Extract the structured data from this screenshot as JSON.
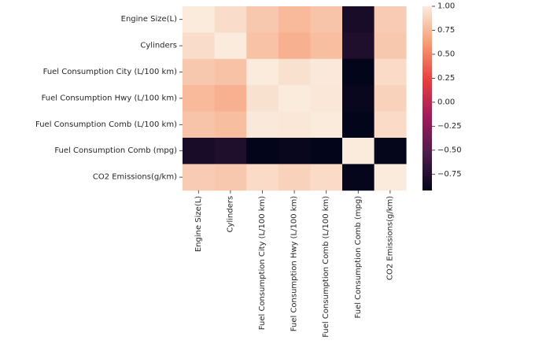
{
  "chart_data": {
    "type": "heatmap",
    "title": "",
    "xlabel": "",
    "ylabel": "",
    "row_labels": [
      "Engine Size(L)",
      "Cylinders",
      "Fuel Consumption City (L/100 km)",
      "Fuel Consumption Hwy (L/100 km)",
      "Fuel Consumption Comb (L/100 km)",
      "Fuel Consumption Comb (mpg)",
      "CO2 Emissions(g/km)"
    ],
    "col_labels": [
      "Engine Size(L)",
      "Cylinders",
      "Fuel Consumption City (L/100 km)",
      "Fuel Consumption Hwy (L/100 km)",
      "Fuel Consumption Comb (L/100 km)",
      "Fuel Consumption Comb (mpg)",
      "CO2 Emissions(g/km)"
    ],
    "values": [
      [
        1.0,
        0.93,
        0.83,
        0.76,
        0.81,
        -0.81,
        0.85
      ],
      [
        0.93,
        1.0,
        0.8,
        0.72,
        0.78,
        -0.77,
        0.83
      ],
      [
        0.83,
        0.8,
        1.0,
        0.95,
        0.99,
        -0.93,
        0.92
      ],
      [
        0.76,
        0.72,
        0.95,
        1.0,
        0.98,
        -0.89,
        0.88
      ],
      [
        0.81,
        0.78,
        0.99,
        0.98,
        1.0,
        -0.93,
        0.92
      ],
      [
        -0.81,
        -0.77,
        -0.93,
        -0.89,
        -0.93,
        1.0,
        -0.91
      ],
      [
        0.85,
        0.83,
        0.92,
        0.88,
        0.92,
        -0.91,
        1.0
      ]
    ],
    "colorbar": {
      "min": -0.92,
      "max": 1.0,
      "ticks": [
        -0.75,
        -0.5,
        -0.25,
        0.0,
        0.25,
        0.5,
        0.75,
        1.0
      ],
      "tick_labels": [
        "−0.75",
        "−0.50",
        "−0.25",
        "0.00",
        "0.25",
        "0.50",
        "0.75",
        "1.00"
      ],
      "colormap": "rocket",
      "stops": [
        "#03051a",
        "#4c1d4b",
        "#a11a5b",
        "#e83f3f",
        "#f69c73",
        "#faebdd"
      ]
    }
  }
}
